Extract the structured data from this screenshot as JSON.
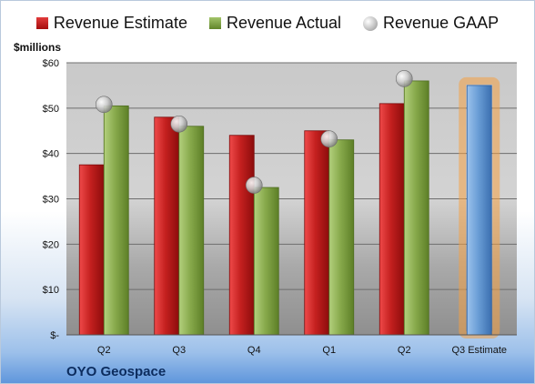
{
  "legend": [
    {
      "label": "Revenue Estimate",
      "icon": "red-square-icon"
    },
    {
      "label": "Revenue Actual",
      "icon": "green-square-icon"
    },
    {
      "label": "Revenue GAAP",
      "icon": "gray-sphere-icon"
    }
  ],
  "unit_label": "$millions",
  "company": "OYO Geospace",
  "colors": {
    "estimate": "#c4201f",
    "actual": "#88aa4c",
    "gaap": "#b8b8b8",
    "forecast": "#6a9ed6",
    "forecast_glow": "#f4a043"
  },
  "chart_data": {
    "type": "bar",
    "categories": [
      "Q2",
      "Q3",
      "Q4",
      "Q1",
      "Q2",
      "Q3 Estimate"
    ],
    "series": [
      {
        "name": "Revenue Estimate",
        "values": [
          37.5,
          48,
          44,
          45,
          51,
          null
        ]
      },
      {
        "name": "Revenue Actual",
        "values": [
          50.5,
          46,
          32.5,
          43,
          56,
          null
        ]
      },
      {
        "name": "Revenue GAAP",
        "values": [
          50.8,
          46.5,
          33,
          43.2,
          56.5,
          null
        ]
      },
      {
        "name": "",
        "values": [
          null,
          null,
          null,
          null,
          null,
          55
        ]
      }
    ],
    "yticks": [
      "$-",
      "$10",
      "$20",
      "$30",
      "$40",
      "$50",
      "$60"
    ],
    "ylim": [
      0,
      60
    ],
    "grid": true,
    "legend_position": "top"
  }
}
